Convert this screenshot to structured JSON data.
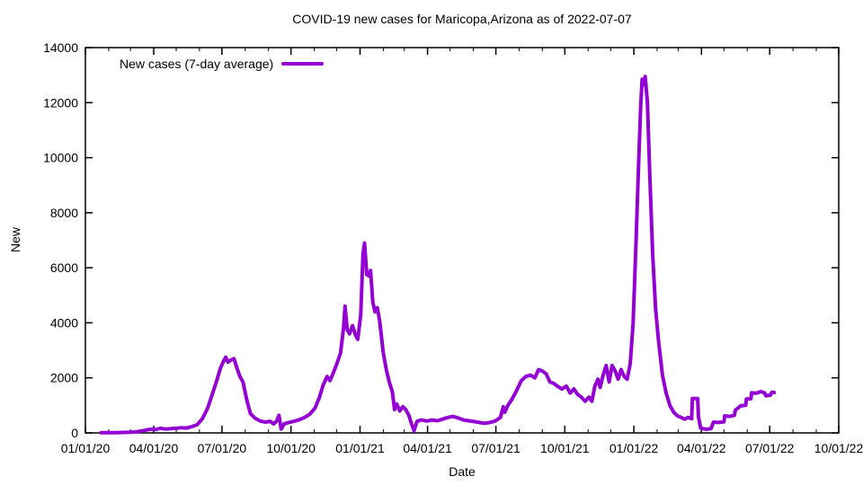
{
  "page": {
    "background": "#ffffff",
    "text_color": "#000000"
  },
  "chart_data": {
    "type": "line",
    "title": "COVID-19 new cases for Maricopa,Arizona as of 2022-07-07",
    "xlabel": "Date",
    "ylabel": "New",
    "grid": false,
    "legend_position": "top-left-inside",
    "ylim": [
      0,
      14000
    ],
    "y_ticks": [
      0,
      2000,
      4000,
      6000,
      8000,
      10000,
      12000,
      14000
    ],
    "x_range": [
      "2020-01-01",
      "2022-10-01"
    ],
    "x_major_ticks": [
      "01/01/20",
      "04/01/20",
      "07/01/20",
      "10/01/20",
      "01/01/21",
      "04/01/21",
      "07/01/21",
      "10/01/21",
      "01/01/22",
      "04/01/22",
      "07/01/22",
      "10/01/22"
    ],
    "x_minor_tick_interval_months": 1,
    "axis_color": "#000000",
    "series": [
      {
        "name": "New cases (7-day average)",
        "color": "#9400d3",
        "line_width": 4,
        "points": [
          [
            "2020-01-22",
            5
          ],
          [
            "2020-02-01",
            8
          ],
          [
            "2020-02-15",
            12
          ],
          [
            "2020-03-01",
            25
          ],
          [
            "2020-03-10",
            45
          ],
          [
            "2020-03-20",
            90
          ],
          [
            "2020-03-27",
            130
          ],
          [
            "2020-04-03",
            120
          ],
          [
            "2020-04-10",
            165
          ],
          [
            "2020-04-17",
            140
          ],
          [
            "2020-04-24",
            155
          ],
          [
            "2020-05-01",
            165
          ],
          [
            "2020-05-08",
            190
          ],
          [
            "2020-05-15",
            175
          ],
          [
            "2020-05-22",
            230
          ],
          [
            "2020-05-29",
            300
          ],
          [
            "2020-06-05",
            520
          ],
          [
            "2020-06-12",
            900
          ],
          [
            "2020-06-18",
            1400
          ],
          [
            "2020-06-24",
            1900
          ],
          [
            "2020-06-29",
            2350
          ],
          [
            "2020-07-03",
            2600
          ],
          [
            "2020-07-06",
            2750
          ],
          [
            "2020-07-09",
            2570
          ],
          [
            "2020-07-13",
            2650
          ],
          [
            "2020-07-17",
            2700
          ],
          [
            "2020-07-21",
            2350
          ],
          [
            "2020-07-25",
            2050
          ],
          [
            "2020-07-29",
            1850
          ],
          [
            "2020-08-03",
            1200
          ],
          [
            "2020-08-08",
            700
          ],
          [
            "2020-08-14",
            540
          ],
          [
            "2020-08-21",
            430
          ],
          [
            "2020-08-28",
            390
          ],
          [
            "2020-09-03",
            420
          ],
          [
            "2020-09-08",
            330
          ],
          [
            "2020-09-12",
            430
          ],
          [
            "2020-09-15",
            640
          ],
          [
            "2020-09-18",
            140
          ],
          [
            "2020-09-22",
            330
          ],
          [
            "2020-09-28",
            380
          ],
          [
            "2020-10-05",
            420
          ],
          [
            "2020-10-12",
            480
          ],
          [
            "2020-10-19",
            560
          ],
          [
            "2020-10-26",
            680
          ],
          [
            "2020-11-02",
            900
          ],
          [
            "2020-11-08",
            1300
          ],
          [
            "2020-11-13",
            1750
          ],
          [
            "2020-11-18",
            2050
          ],
          [
            "2020-11-22",
            1900
          ],
          [
            "2020-11-26",
            2150
          ],
          [
            "2020-12-01",
            2500
          ],
          [
            "2020-12-06",
            2900
          ],
          [
            "2020-12-10",
            3800
          ],
          [
            "2020-12-12",
            4600
          ],
          [
            "2020-12-15",
            3750
          ],
          [
            "2020-12-18",
            3600
          ],
          [
            "2020-12-22",
            3900
          ],
          [
            "2020-12-26",
            3550
          ],
          [
            "2020-12-29",
            3400
          ],
          [
            "2021-01-02",
            4300
          ],
          [
            "2021-01-05",
            6500
          ],
          [
            "2021-01-07",
            6900
          ],
          [
            "2021-01-10",
            5750
          ],
          [
            "2021-01-13",
            5700
          ],
          [
            "2021-01-15",
            5900
          ],
          [
            "2021-01-18",
            4750
          ],
          [
            "2021-01-21",
            4400
          ],
          [
            "2021-01-24",
            4550
          ],
          [
            "2021-01-27",
            4100
          ],
          [
            "2021-02-01",
            2900
          ],
          [
            "2021-02-05",
            2300
          ],
          [
            "2021-02-09",
            1850
          ],
          [
            "2021-02-13",
            1500
          ],
          [
            "2021-02-16",
            850
          ],
          [
            "2021-02-19",
            1050
          ],
          [
            "2021-02-23",
            800
          ],
          [
            "2021-02-27",
            950
          ],
          [
            "2021-03-03",
            850
          ],
          [
            "2021-03-07",
            650
          ],
          [
            "2021-03-11",
            300
          ],
          [
            "2021-03-14",
            80
          ],
          [
            "2021-03-18",
            420
          ],
          [
            "2021-03-24",
            470
          ],
          [
            "2021-03-31",
            430
          ],
          [
            "2021-04-07",
            470
          ],
          [
            "2021-04-14",
            440
          ],
          [
            "2021-04-21",
            500
          ],
          [
            "2021-04-28",
            560
          ],
          [
            "2021-05-05",
            600
          ],
          [
            "2021-05-12",
            540
          ],
          [
            "2021-05-19",
            470
          ],
          [
            "2021-05-26",
            440
          ],
          [
            "2021-06-02",
            410
          ],
          [
            "2021-06-09",
            380
          ],
          [
            "2021-06-16",
            350
          ],
          [
            "2021-06-23",
            380
          ],
          [
            "2021-06-30",
            430
          ],
          [
            "2021-07-07",
            560
          ],
          [
            "2021-07-11",
            950
          ],
          [
            "2021-07-13",
            750
          ],
          [
            "2021-07-17",
            1000
          ],
          [
            "2021-07-22",
            1200
          ],
          [
            "2021-07-28",
            1500
          ],
          [
            "2021-08-04",
            1900
          ],
          [
            "2021-08-10",
            2050
          ],
          [
            "2021-08-16",
            2100
          ],
          [
            "2021-08-22",
            2000
          ],
          [
            "2021-08-27",
            2300
          ],
          [
            "2021-09-01",
            2250
          ],
          [
            "2021-09-06",
            2150
          ],
          [
            "2021-09-11",
            1850
          ],
          [
            "2021-09-16",
            1800
          ],
          [
            "2021-09-21",
            1700
          ],
          [
            "2021-09-27",
            1600
          ],
          [
            "2021-10-03",
            1700
          ],
          [
            "2021-10-08",
            1450
          ],
          [
            "2021-10-13",
            1600
          ],
          [
            "2021-10-18",
            1400
          ],
          [
            "2021-10-23",
            1300
          ],
          [
            "2021-10-28",
            1150
          ],
          [
            "2021-11-02",
            1300
          ],
          [
            "2021-11-06",
            1150
          ],
          [
            "2021-11-10",
            1700
          ],
          [
            "2021-11-14",
            1950
          ],
          [
            "2021-11-17",
            1650
          ],
          [
            "2021-11-21",
            2100
          ],
          [
            "2021-11-25",
            2450
          ],
          [
            "2021-11-29",
            1850
          ],
          [
            "2021-12-03",
            2450
          ],
          [
            "2021-12-07",
            2250
          ],
          [
            "2021-12-11",
            1950
          ],
          [
            "2021-12-15",
            2300
          ],
          [
            "2021-12-19",
            2050
          ],
          [
            "2021-12-23",
            1950
          ],
          [
            "2021-12-27",
            2500
          ],
          [
            "2021-12-31",
            4000
          ],
          [
            "2022-01-04",
            7000
          ],
          [
            "2022-01-07",
            9500
          ],
          [
            "2022-01-10",
            11800
          ],
          [
            "2022-01-12",
            12850
          ],
          [
            "2022-01-14",
            12650
          ],
          [
            "2022-01-16",
            12950
          ],
          [
            "2022-01-19",
            12000
          ],
          [
            "2022-01-22",
            9500
          ],
          [
            "2022-01-26",
            6500
          ],
          [
            "2022-01-30",
            4500
          ],
          [
            "2022-02-03",
            3300
          ],
          [
            "2022-02-08",
            2100
          ],
          [
            "2022-02-13",
            1450
          ],
          [
            "2022-02-18",
            1000
          ],
          [
            "2022-02-23",
            750
          ],
          [
            "2022-02-28",
            620
          ],
          [
            "2022-03-05",
            560
          ],
          [
            "2022-03-10",
            500
          ],
          [
            "2022-03-14",
            560
          ],
          [
            "2022-03-19",
            520
          ],
          [
            "2022-03-20",
            1250
          ],
          [
            "2022-03-27",
            1250
          ],
          [
            "2022-03-28",
            600
          ],
          [
            "2022-03-31",
            170
          ],
          [
            "2022-04-08",
            130
          ],
          [
            "2022-04-14",
            160
          ],
          [
            "2022-04-17",
            390
          ],
          [
            "2022-04-24",
            380
          ],
          [
            "2022-05-01",
            400
          ],
          [
            "2022-05-02",
            620
          ],
          [
            "2022-05-09",
            600
          ],
          [
            "2022-05-15",
            640
          ],
          [
            "2022-05-16",
            820
          ],
          [
            "2022-05-23",
            980
          ],
          [
            "2022-05-30",
            1010
          ],
          [
            "2022-05-31",
            1230
          ],
          [
            "2022-06-06",
            1240
          ],
          [
            "2022-06-07",
            1460
          ],
          [
            "2022-06-13",
            1440
          ],
          [
            "2022-06-19",
            1500
          ],
          [
            "2022-06-24",
            1460
          ],
          [
            "2022-06-26",
            1350
          ],
          [
            "2022-07-02",
            1370
          ],
          [
            "2022-07-04",
            1480
          ],
          [
            "2022-07-07",
            1470
          ]
        ]
      }
    ]
  }
}
